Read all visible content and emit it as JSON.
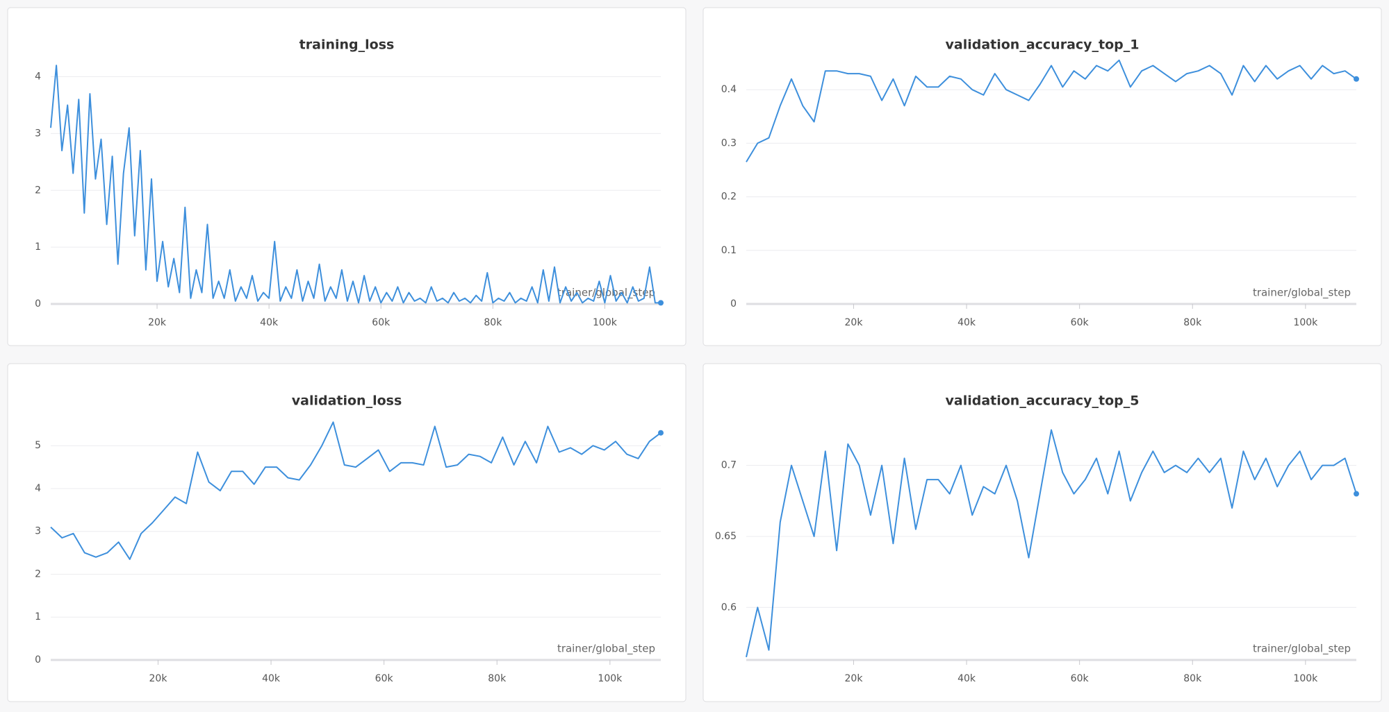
{
  "chart_data": [
    {
      "type": "line",
      "title": "training_loss",
      "x_label": "trainer/global_step",
      "color": "#3d8fdc",
      "x": [
        1000,
        2000,
        3000,
        4000,
        5000,
        6000,
        7000,
        8000,
        9000,
        10000,
        11000,
        12000,
        13000,
        14000,
        15000,
        16000,
        17000,
        18000,
        19000,
        20000,
        21000,
        22000,
        23000,
        24000,
        25000,
        26000,
        27000,
        28000,
        29000,
        30000,
        31000,
        32000,
        33000,
        34000,
        35000,
        36000,
        37000,
        38000,
        39000,
        40000,
        41000,
        42000,
        43000,
        44000,
        45000,
        46000,
        47000,
        48000,
        49000,
        50000,
        51000,
        52000,
        53000,
        54000,
        55000,
        56000,
        57000,
        58000,
        59000,
        60000,
        61000,
        62000,
        63000,
        64000,
        65000,
        66000,
        67000,
        68000,
        69000,
        70000,
        71000,
        72000,
        73000,
        74000,
        75000,
        76000,
        77000,
        78000,
        79000,
        80000,
        81000,
        82000,
        83000,
        84000,
        85000,
        86000,
        87000,
        88000,
        89000,
        90000,
        91000,
        92000,
        93000,
        94000,
        95000,
        96000,
        97000,
        98000,
        99000,
        100000,
        101000,
        102000,
        103000,
        104000,
        105000,
        106000,
        107000,
        108000,
        109000,
        110000
      ],
      "values": [
        3.1,
        4.2,
        2.7,
        3.5,
        2.3,
        3.6,
        1.6,
        3.7,
        2.2,
        2.9,
        1.4,
        2.6,
        0.7,
        2.3,
        3.1,
        1.2,
        2.7,
        0.6,
        2.2,
        0.4,
        1.1,
        0.3,
        0.8,
        0.2,
        1.7,
        0.1,
        0.6,
        0.2,
        1.4,
        0.1,
        0.4,
        0.1,
        0.6,
        0.05,
        0.3,
        0.1,
        0.5,
        0.05,
        0.2,
        0.1,
        1.1,
        0.05,
        0.3,
        0.1,
        0.6,
        0.05,
        0.4,
        0.1,
        0.7,
        0.05,
        0.3,
        0.1,
        0.6,
        0.05,
        0.4,
        0.02,
        0.5,
        0.05,
        0.3,
        0.02,
        0.2,
        0.05,
        0.3,
        0.02,
        0.2,
        0.05,
        0.1,
        0.02,
        0.3,
        0.05,
        0.1,
        0.02,
        0.2,
        0.05,
        0.1,
        0.02,
        0.15,
        0.05,
        0.55,
        0.02,
        0.1,
        0.05,
        0.2,
        0.02,
        0.1,
        0.05,
        0.3,
        0.02,
        0.6,
        0.05,
        0.65,
        0.02,
        0.3,
        0.05,
        0.2,
        0.02,
        0.1,
        0.05,
        0.4,
        0.02,
        0.5,
        0.05,
        0.2,
        0.02,
        0.3,
        0.05,
        0.1,
        0.65,
        0.02,
        0.02
      ],
      "xlim": [
        1000,
        110000
      ],
      "ylim": [
        0,
        4.3
      ],
      "xticks": [
        {
          "value": 20000,
          "label": "20k"
        },
        {
          "value": 40000,
          "label": "40k"
        },
        {
          "value": 60000,
          "label": "60k"
        },
        {
          "value": 80000,
          "label": "80k"
        },
        {
          "value": 100000,
          "label": "100k"
        }
      ],
      "yticks": [
        0,
        1,
        2,
        3,
        4
      ],
      "grid": true
    },
    {
      "type": "line",
      "title": "validation_accuracy_top_1",
      "x_label": "trainer/global_step",
      "color": "#3d8fdc",
      "x": [
        1000,
        3000,
        5000,
        7000,
        9000,
        11000,
        13000,
        15000,
        17000,
        19000,
        21000,
        23000,
        25000,
        27000,
        29000,
        31000,
        33000,
        35000,
        37000,
        39000,
        41000,
        43000,
        45000,
        47000,
        49000,
        51000,
        53000,
        55000,
        57000,
        59000,
        61000,
        63000,
        65000,
        67000,
        69000,
        71000,
        73000,
        75000,
        77000,
        79000,
        81000,
        83000,
        85000,
        87000,
        89000,
        91000,
        93000,
        95000,
        97000,
        99000,
        101000,
        103000,
        105000,
        107000,
        109000
      ],
      "values": [
        0.265,
        0.3,
        0.31,
        0.37,
        0.42,
        0.37,
        0.34,
        0.435,
        0.435,
        0.43,
        0.43,
        0.425,
        0.38,
        0.42,
        0.37,
        0.425,
        0.405,
        0.405,
        0.425,
        0.42,
        0.4,
        0.39,
        0.43,
        0.4,
        0.39,
        0.38,
        0.41,
        0.445,
        0.405,
        0.435,
        0.42,
        0.445,
        0.435,
        0.455,
        0.405,
        0.435,
        0.445,
        0.43,
        0.415,
        0.43,
        0.435,
        0.445,
        0.43,
        0.39,
        0.445,
        0.415,
        0.445,
        0.42,
        0.435,
        0.445,
        0.42,
        0.445,
        0.43,
        0.435,
        0.42
      ],
      "xlim": [
        1000,
        109000
      ],
      "ylim": [
        0,
        0.456
      ],
      "xticks": [
        {
          "value": 20000,
          "label": "20k"
        },
        {
          "value": 40000,
          "label": "40k"
        },
        {
          "value": 60000,
          "label": "60k"
        },
        {
          "value": 80000,
          "label": "80k"
        },
        {
          "value": 100000,
          "label": "100k"
        }
      ],
      "yticks": [
        0,
        0.1,
        0.2,
        0.3,
        0.4
      ],
      "grid": true
    },
    {
      "type": "line",
      "title": "validation_loss",
      "x_label": "trainer/global_step",
      "color": "#3d8fdc",
      "x": [
        1000,
        3000,
        5000,
        7000,
        9000,
        11000,
        13000,
        15000,
        17000,
        19000,
        21000,
        23000,
        25000,
        27000,
        29000,
        31000,
        33000,
        35000,
        37000,
        39000,
        41000,
        43000,
        45000,
        47000,
        49000,
        51000,
        53000,
        55000,
        57000,
        59000,
        61000,
        63000,
        65000,
        67000,
        69000,
        71000,
        73000,
        75000,
        77000,
        79000,
        81000,
        83000,
        85000,
        87000,
        89000,
        91000,
        93000,
        95000,
        97000,
        99000,
        101000,
        103000,
        105000,
        107000,
        109000
      ],
      "values": [
        3.1,
        2.85,
        2.95,
        2.5,
        2.4,
        2.5,
        2.75,
        2.35,
        2.95,
        3.2,
        3.5,
        3.8,
        3.65,
        4.85,
        4.15,
        3.95,
        4.4,
        4.4,
        4.1,
        4.5,
        4.5,
        4.25,
        4.2,
        4.55,
        5.0,
        5.55,
        4.55,
        4.5,
        4.7,
        4.9,
        4.4,
        4.6,
        4.6,
        4.55,
        5.45,
        4.5,
        4.55,
        4.8,
        4.75,
        4.6,
        5.2,
        4.55,
        5.1,
        4.6,
        5.45,
        4.85,
        4.95,
        4.8,
        5.0,
        4.9,
        5.1,
        4.8,
        4.7,
        5.1,
        5.3
      ],
      "xlim": [
        1000,
        109000
      ],
      "ylim": [
        0,
        5.7
      ],
      "xticks": [
        {
          "value": 20000,
          "label": "20k"
        },
        {
          "value": 40000,
          "label": "40k"
        },
        {
          "value": 60000,
          "label": "60k"
        },
        {
          "value": 80000,
          "label": "80k"
        },
        {
          "value": 100000,
          "label": "100k"
        }
      ],
      "yticks": [
        0,
        1,
        2,
        3,
        4,
        5
      ],
      "grid": true
    },
    {
      "type": "line",
      "title": "validation_accuracy_top_5",
      "x_label": "trainer/global_step",
      "color": "#3d8fdc",
      "x": [
        1000,
        3000,
        5000,
        7000,
        9000,
        11000,
        13000,
        15000,
        17000,
        19000,
        21000,
        23000,
        25000,
        27000,
        29000,
        31000,
        33000,
        35000,
        37000,
        39000,
        41000,
        43000,
        45000,
        47000,
        49000,
        51000,
        53000,
        55000,
        57000,
        59000,
        61000,
        63000,
        65000,
        67000,
        69000,
        71000,
        73000,
        75000,
        77000,
        79000,
        81000,
        83000,
        85000,
        87000,
        89000,
        91000,
        93000,
        95000,
        97000,
        99000,
        101000,
        103000,
        105000,
        107000,
        109000
      ],
      "values": [
        0.565,
        0.6,
        0.57,
        0.66,
        0.7,
        0.675,
        0.65,
        0.71,
        0.64,
        0.715,
        0.7,
        0.665,
        0.7,
        0.645,
        0.705,
        0.655,
        0.69,
        0.69,
        0.68,
        0.7,
        0.665,
        0.685,
        0.68,
        0.7,
        0.675,
        0.635,
        0.68,
        0.725,
        0.695,
        0.68,
        0.69,
        0.705,
        0.68,
        0.71,
        0.675,
        0.695,
        0.71,
        0.695,
        0.7,
        0.695,
        0.705,
        0.695,
        0.705,
        0.67,
        0.71,
        0.69,
        0.705,
        0.685,
        0.7,
        0.71,
        0.69,
        0.7,
        0.7,
        0.705,
        0.68
      ],
      "xlim": [
        1000,
        109000
      ],
      "ylim": [
        0.563,
        0.735
      ],
      "xticks": [
        {
          "value": 20000,
          "label": "20k"
        },
        {
          "value": 40000,
          "label": "40k"
        },
        {
          "value": 60000,
          "label": "60k"
        },
        {
          "value": 80000,
          "label": "80k"
        },
        {
          "value": 100000,
          "label": "100k"
        }
      ],
      "yticks": [
        0.6,
        0.65,
        0.7
      ],
      "grid": true
    }
  ]
}
